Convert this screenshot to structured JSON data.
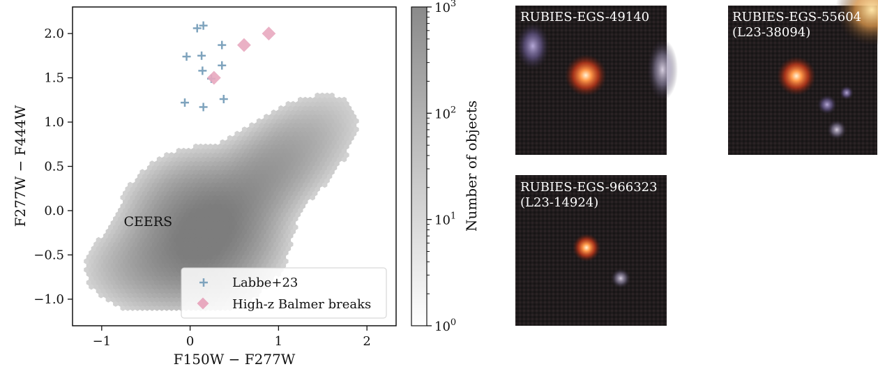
{
  "chart_data": {
    "type": "scatter",
    "xlabel": "F150W − F277W",
    "ylabel": "F277W − F444W",
    "xlim": [
      -1.33,
      2.33
    ],
    "ylim": [
      -1.3,
      2.3
    ],
    "xticks": [
      -1,
      0,
      1,
      2
    ],
    "yticks": [
      -1.0,
      -0.5,
      0.0,
      0.5,
      1.0,
      1.5,
      2.0
    ],
    "xtick_labels": [
      "−1",
      "0",
      "1",
      "2"
    ],
    "ytick_labels": [
      "−1.0",
      "−0.5",
      "0.0",
      "0.5",
      "1.0",
      "1.5",
      "2.0"
    ],
    "background_label": "CEERS",
    "background_label_pos": [
      -0.75,
      -0.12
    ],
    "colorbar": {
      "label": "Number of objects",
      "scale": "log",
      "range": [
        1,
        1000
      ],
      "ticks": [
        1,
        10,
        100,
        1000
      ],
      "tick_labels": [
        {
          "base": "10",
          "exp": "0"
        },
        {
          "base": "10",
          "exp": "1"
        },
        {
          "base": "10",
          "exp": "2"
        },
        {
          "base": "10",
          "exp": "3"
        }
      ],
      "colors": [
        "#ffffff",
        "#8a8a8a"
      ]
    },
    "series": [
      {
        "name": "Labbe+23",
        "marker": "plus",
        "color": "#7ea3bd",
        "x": [
          0.08,
          0.15,
          -0.04,
          0.13,
          0.36,
          0.14,
          0.36,
          0.24,
          -0.06,
          0.38,
          0.15
        ],
        "y": [
          2.06,
          2.09,
          1.74,
          1.75,
          1.87,
          1.58,
          1.64,
          1.49,
          1.22,
          1.26,
          1.17
        ]
      },
      {
        "name": "High-z Balmer breaks",
        "marker": "diamond",
        "color": "#e8a9bf",
        "x": [
          0.89,
          0.61,
          0.27
        ],
        "y": [
          2.0,
          1.87,
          1.5
        ]
      }
    ],
    "legend": {
      "position": "lower-right"
    }
  },
  "cutouts": [
    {
      "name": "RUBIES-EGS-49140",
      "alt": ""
    },
    {
      "name": "RUBIES-EGS-55604",
      "alt": "(L23-38094)"
    },
    {
      "name": "RUBIES-EGS-966323",
      "alt": "(L23-14924)"
    }
  ]
}
